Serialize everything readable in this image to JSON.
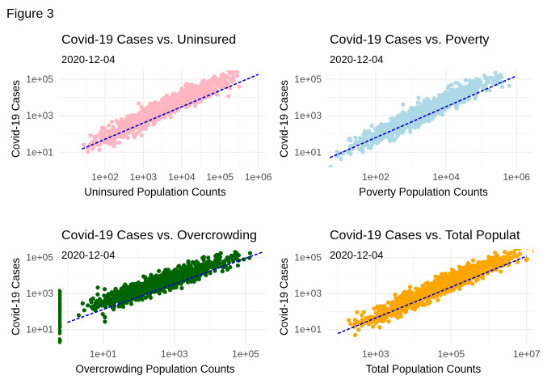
{
  "figure_title": "Figure 3",
  "chart_data": [
    {
      "type": "scatter",
      "title": "Covid-19 Cases vs. Uninsured",
      "subtitle": "2020-12-04",
      "xlabel": "Uninsured Population Counts",
      "ylabel": "Covid-19 Cases",
      "x_scale": "log10",
      "y_scale": "log10",
      "xlim": [
        6,
        1500000
      ],
      "ylim": [
        1.5,
        300000
      ],
      "x_ticks": [
        {
          "value": 100,
          "label": "1e+02"
        },
        {
          "value": 1000,
          "label": "1e+03"
        },
        {
          "value": 10000,
          "label": "1e+04"
        },
        {
          "value": 100000,
          "label": "1e+05"
        },
        {
          "value": 1000000,
          "label": "1e+06"
        }
      ],
      "y_ticks": [
        {
          "value": 10,
          "label": "1e+01"
        },
        {
          "value": 1000,
          "label": "1e+03"
        },
        {
          "value": 100000,
          "label": "1e+05"
        }
      ],
      "point_color": "#FFB6C1",
      "trend_color": "#0000CD",
      "trend_line": {
        "x": [
          25,
          1000000
        ],
        "y": [
          15,
          180000
        ]
      },
      "cloud": [
        {
          "x": 25,
          "y": 13
        },
        {
          "x": 50,
          "y": 28
        },
        {
          "x": 100,
          "y": 65
        },
        {
          "x": 300,
          "y": 190
        },
        {
          "x": 1000,
          "y": 750
        },
        {
          "x": 3000,
          "y": 2400
        },
        {
          "x": 10000,
          "y": 7500
        },
        {
          "x": 30000,
          "y": 21000
        },
        {
          "x": 100000,
          "y": 65000
        },
        {
          "x": 300000,
          "y": 150000
        },
        {
          "x": 900000,
          "y": 220000
        }
      ],
      "grid": true,
      "legend": "none"
    },
    {
      "type": "scatter",
      "title": "Covid-19 Cases vs. Poverty",
      "subtitle": "2020-12-04",
      "xlabel": "Poverty Population Counts",
      "ylabel": "Covid-19 Cases",
      "x_scale": "log10",
      "y_scale": "log10",
      "xlim": [
        4,
        3000000
      ],
      "ylim": [
        1.5,
        300000
      ],
      "x_ticks": [
        {
          "value": 100,
          "label": "1e+02"
        },
        {
          "value": 10000,
          "label": "1e+04"
        },
        {
          "value": 1000000,
          "label": "1e+06"
        }
      ],
      "y_ticks": [
        {
          "value": 10,
          "label": "1e+01"
        },
        {
          "value": 1000,
          "label": "1e+03"
        },
        {
          "value": 100000,
          "label": "1e+05"
        }
      ],
      "point_color": "#ADD8E6",
      "trend_color": "#0000CD",
      "trend_line": {
        "x": [
          5,
          1000000
        ],
        "y": [
          5,
          150000
        ]
      },
      "cloud": [
        {
          "x": 5,
          "y": 4
        },
        {
          "x": 20,
          "y": 14
        },
        {
          "x": 100,
          "y": 70
        },
        {
          "x": 500,
          "y": 330
        },
        {
          "x": 2000,
          "y": 1300
        },
        {
          "x": 10000,
          "y": 6500
        },
        {
          "x": 50000,
          "y": 30000
        },
        {
          "x": 200000,
          "y": 90000
        },
        {
          "x": 800000,
          "y": 180000
        }
      ],
      "grid": true,
      "legend": "none"
    },
    {
      "type": "scatter",
      "title": "Covid-19 Cases vs. Overcrowding",
      "subtitle": "2020-12-04",
      "xlabel": "Overcrowding Population Counts",
      "ylabel": "Covid-19 Cases",
      "x_scale": "log10",
      "y_scale": "log10",
      "xlim": [
        0.55,
        350000
      ],
      "ylim": [
        1.5,
        300000
      ],
      "x_ticks": [
        {
          "value": 10,
          "label": "1e+01"
        },
        {
          "value": 1000,
          "label": "1e+03"
        },
        {
          "value": 100000,
          "label": "1e+05"
        }
      ],
      "y_ticks": [
        {
          "value": 10,
          "label": "1e+01"
        },
        {
          "value": 1000,
          "label": "1e+03"
        },
        {
          "value": 100000,
          "label": "1e+05"
        }
      ],
      "point_color": "#006400",
      "trend_color": "#0000CD",
      "trend_line": {
        "x": [
          1,
          300000
        ],
        "y": [
          25,
          200000
        ]
      },
      "cloud": [
        {
          "x": 1.5,
          "y": 35
        },
        {
          "x": 5,
          "y": 150
        },
        {
          "x": 20,
          "y": 500
        },
        {
          "x": 100,
          "y": 1600
        },
        {
          "x": 500,
          "y": 4500
        },
        {
          "x": 2000,
          "y": 12000
        },
        {
          "x": 10000,
          "y": 35000
        },
        {
          "x": 50000,
          "y": 100000
        },
        {
          "x": 250000,
          "y": 220000
        }
      ],
      "edge_column": {
        "x": 0.6,
        "y_range": [
          2,
          2000
        ]
      },
      "grid": true,
      "legend": "none"
    },
    {
      "type": "scatter",
      "title": "Covid-19 Cases vs. Total Populat",
      "subtitle": "2020-12-04",
      "xlabel": "Total Population Counts",
      "ylabel": "Covid-19 Cases",
      "x_scale": "log10",
      "y_scale": "log10",
      "xlim": [
        50,
        15000000
      ],
      "ylim": [
        1.5,
        300000
      ],
      "x_ticks": [
        {
          "value": 1000,
          "label": "1e+03"
        },
        {
          "value": 100000,
          "label": "1e+05"
        },
        {
          "value": 10000000,
          "label": "1e+07"
        }
      ],
      "y_ticks": [
        {
          "value": 10,
          "label": "1e+01"
        },
        {
          "value": 1000,
          "label": "1e+03"
        },
        {
          "value": 100000,
          "label": "1e+05"
        }
      ],
      "point_color": "#FFA500",
      "trend_color": "#0000CD",
      "trend_line": {
        "x": [
          100,
          10000000
        ],
        "y": [
          6,
          120000
        ]
      },
      "cloud": [
        {
          "x": 100,
          "y": 5
        },
        {
          "x": 500,
          "y": 22
        },
        {
          "x": 2000,
          "y": 90
        },
        {
          "x": 10000,
          "y": 500
        },
        {
          "x": 50000,
          "y": 2500
        },
        {
          "x": 200000,
          "y": 9000
        },
        {
          "x": 1000000,
          "y": 40000
        },
        {
          "x": 5000000,
          "y": 120000
        },
        {
          "x": 10000000,
          "y": 200000
        }
      ],
      "grid": true,
      "legend": "none"
    }
  ]
}
